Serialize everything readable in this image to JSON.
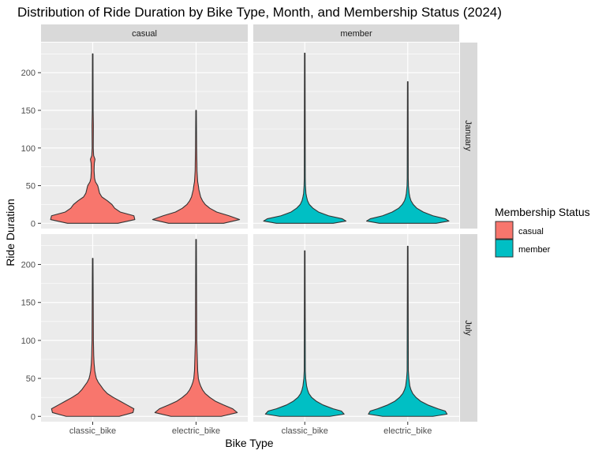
{
  "chart_data": {
    "type": "violin",
    "title": "Distribution of Ride Duration by Bike Type, Month, and Membership Status (2024)",
    "xlabel": "Bike Type",
    "ylabel": "Ride Duration",
    "categories": [
      "classic_bike",
      "electric_bike"
    ],
    "column_facets": [
      "casual",
      "member"
    ],
    "row_facets": [
      "January",
      "July"
    ],
    "ylim": [
      -7,
      240
    ],
    "yticks": [
      "0",
      "50",
      "100",
      "150",
      "200"
    ],
    "legend": {
      "title": "Membership Status",
      "position": "right",
      "entries": [
        "casual",
        "member"
      ]
    },
    "colors": {
      "casual": "#F8766D",
      "member": "#00BFC4"
    },
    "grid": true,
    "panels": [
      {
        "member_type": "casual",
        "month": "January",
        "violins": [
          {
            "bike": "classic_bike",
            "max": 225,
            "profile": [
              [
                0,
                0.55
              ],
              [
                5,
                0.92
              ],
              [
                10,
                0.9
              ],
              [
                15,
                0.6
              ],
              [
                20,
                0.48
              ],
              [
                25,
                0.42
              ],
              [
                30,
                0.32
              ],
              [
                35,
                0.2
              ],
              [
                40,
                0.15
              ],
              [
                45,
                0.13
              ],
              [
                50,
                0.11
              ],
              [
                55,
                0.06
              ],
              [
                60,
                0.04
              ],
              [
                70,
                0.03
              ],
              [
                80,
                0.035
              ],
              [
                85,
                0.05
              ],
              [
                90,
                0.02
              ],
              [
                100,
                0.012
              ],
              [
                130,
                0.015
              ],
              [
                150,
                0.009
              ],
              [
                225,
                0.006
              ]
            ]
          },
          {
            "bike": "electric_bike",
            "max": 150,
            "profile": [
              [
                0,
                0.6
              ],
              [
                5,
                0.95
              ],
              [
                10,
                0.72
              ],
              [
                15,
                0.45
              ],
              [
                20,
                0.3
              ],
              [
                25,
                0.2
              ],
              [
                30,
                0.14
              ],
              [
                35,
                0.1
              ],
              [
                40,
                0.08
              ],
              [
                45,
                0.06
              ],
              [
                50,
                0.05
              ],
              [
                55,
                0.035
              ],
              [
                60,
                0.03
              ],
              [
                70,
                0.02
              ],
              [
                80,
                0.018
              ],
              [
                100,
                0.012
              ],
              [
                150,
                0.006
              ]
            ]
          }
        ]
      },
      {
        "member_type": "member",
        "month": "January",
        "violins": [
          {
            "bike": "classic_bike",
            "max": 226,
            "profile": [
              [
                0,
                0.62
              ],
              [
                3,
                0.9
              ],
              [
                6,
                0.82
              ],
              [
                10,
                0.52
              ],
              [
                15,
                0.3
              ],
              [
                20,
                0.18
              ],
              [
                25,
                0.1
              ],
              [
                30,
                0.06
              ],
              [
                35,
                0.04
              ],
              [
                40,
                0.025
              ],
              [
                50,
                0.015
              ],
              [
                60,
                0.011
              ],
              [
                226,
                0.006
              ]
            ]
          },
          {
            "bike": "electric_bike",
            "max": 188,
            "profile": [
              [
                0,
                0.62
              ],
              [
                3,
                0.9
              ],
              [
                6,
                0.82
              ],
              [
                10,
                0.55
              ],
              [
                15,
                0.34
              ],
              [
                20,
                0.2
              ],
              [
                25,
                0.12
              ],
              [
                30,
                0.07
              ],
              [
                35,
                0.045
              ],
              [
                40,
                0.03
              ],
              [
                50,
                0.015
              ],
              [
                60,
                0.011
              ],
              [
                188,
                0.006
              ]
            ]
          }
        ]
      },
      {
        "member_type": "casual",
        "month": "July",
        "violins": [
          {
            "bike": "classic_bike",
            "max": 208,
            "profile": [
              [
                0,
                0.58
              ],
              [
                5,
                0.88
              ],
              [
                10,
                0.9
              ],
              [
                15,
                0.75
              ],
              [
                20,
                0.6
              ],
              [
                25,
                0.45
              ],
              [
                30,
                0.32
              ],
              [
                35,
                0.24
              ],
              [
                40,
                0.18
              ],
              [
                45,
                0.12
              ],
              [
                50,
                0.08
              ],
              [
                55,
                0.06
              ],
              [
                60,
                0.045
              ],
              [
                70,
                0.03
              ],
              [
                80,
                0.022
              ],
              [
                100,
                0.015
              ],
              [
                208,
                0.006
              ]
            ]
          },
          {
            "bike": "electric_bike",
            "max": 233,
            "profile": [
              [
                0,
                0.55
              ],
              [
                5,
                0.9
              ],
              [
                10,
                0.8
              ],
              [
                15,
                0.6
              ],
              [
                20,
                0.42
              ],
              [
                25,
                0.3
              ],
              [
                30,
                0.2
              ],
              [
                35,
                0.14
              ],
              [
                40,
                0.1
              ],
              [
                45,
                0.07
              ],
              [
                50,
                0.05
              ],
              [
                60,
                0.035
              ],
              [
                70,
                0.03
              ],
              [
                80,
                0.025
              ],
              [
                90,
                0.02
              ],
              [
                100,
                0.015
              ],
              [
                233,
                0.006
              ]
            ]
          }
        ]
      },
      {
        "member_type": "member",
        "month": "July",
        "violins": [
          {
            "bike": "classic_bike",
            "max": 218,
            "profile": [
              [
                0,
                0.55
              ],
              [
                3,
                0.86
              ],
              [
                7,
                0.8
              ],
              [
                10,
                0.62
              ],
              [
                15,
                0.4
              ],
              [
                20,
                0.25
              ],
              [
                25,
                0.15
              ],
              [
                30,
                0.09
              ],
              [
                35,
                0.06
              ],
              [
                40,
                0.04
              ],
              [
                50,
                0.02
              ],
              [
                60,
                0.012
              ],
              [
                218,
                0.006
              ]
            ]
          },
          {
            "bike": "electric_bike",
            "max": 224,
            "profile": [
              [
                0,
                0.55
              ],
              [
                3,
                0.86
              ],
              [
                7,
                0.82
              ],
              [
                10,
                0.66
              ],
              [
                15,
                0.44
              ],
              [
                20,
                0.28
              ],
              [
                25,
                0.18
              ],
              [
                30,
                0.11
              ],
              [
                35,
                0.07
              ],
              [
                40,
                0.045
              ],
              [
                50,
                0.025
              ],
              [
                60,
                0.013
              ],
              [
                224,
                0.006
              ]
            ]
          }
        ]
      }
    ]
  }
}
